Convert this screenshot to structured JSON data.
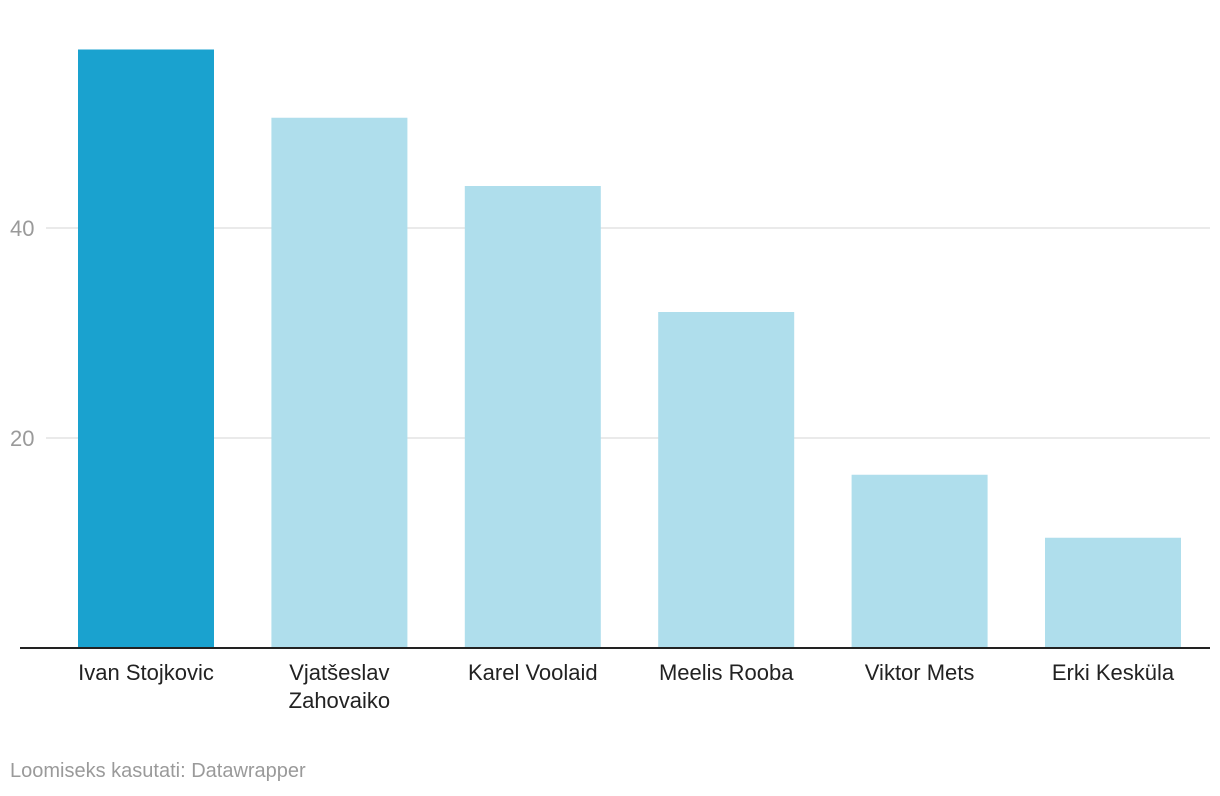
{
  "chart_data": {
    "type": "bar",
    "categories": [
      "Ivan Stojkovic",
      "Vjatšeslav Zahovaiko",
      "Karel Voolaid",
      "Meelis Rooba",
      "Viktor Mets",
      "Erki Kesküla"
    ],
    "category_lines": [
      [
        "Ivan Stojkovic"
      ],
      [
        "Vjatšeslav",
        "Zahovaiko"
      ],
      [
        "Karel Voolaid"
      ],
      [
        "Meelis Rooba"
      ],
      [
        "Viktor Mets"
      ],
      [
        "Erki Kesküla"
      ]
    ],
    "values": [
      57,
      50.5,
      44,
      32,
      16.5,
      10.5
    ],
    "ylim": [
      0,
      62
    ],
    "yticks": [
      20,
      40
    ],
    "grid": true,
    "colors": {
      "highlight": "#1aa2cf",
      "default": "#afdeec"
    },
    "highlight_index": 0
  },
  "footer": {
    "credit": "Loomiseks kasutati: Datawrapper"
  }
}
